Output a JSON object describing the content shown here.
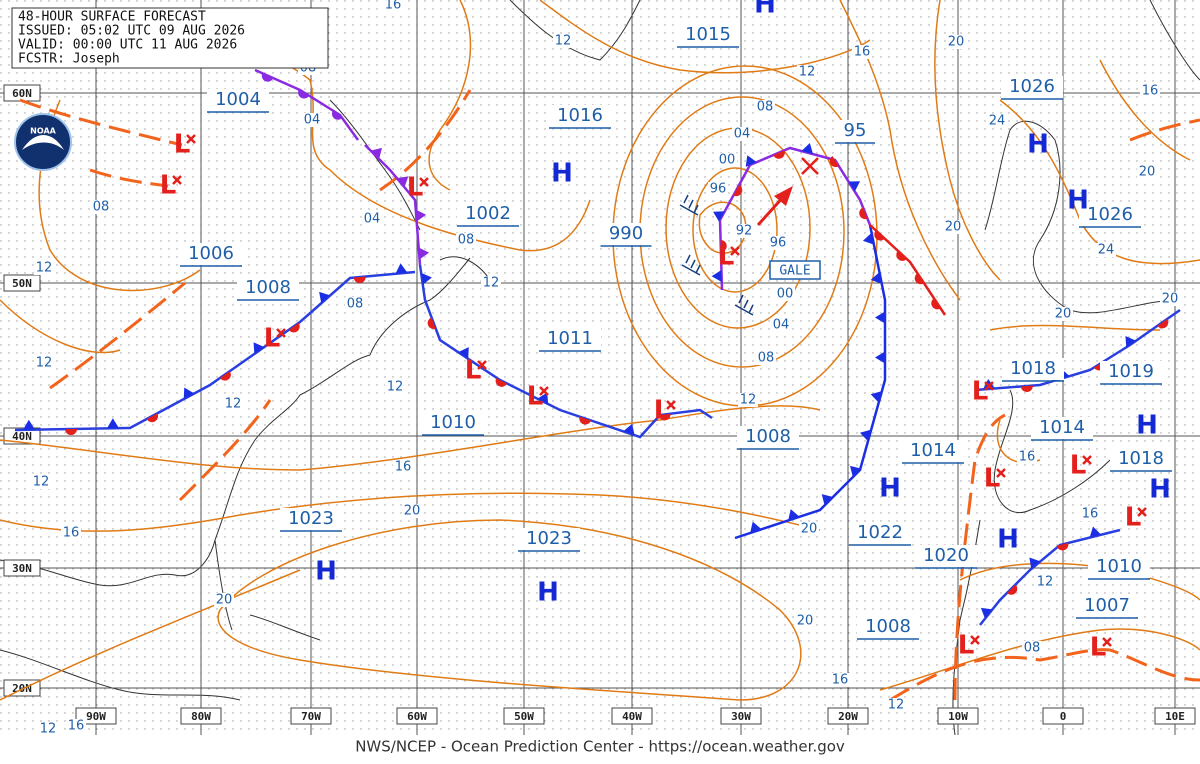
{
  "header": {
    "lines": [
      "48-HOUR SURFACE FORECAST",
      "ISSUED: 05:02 UTC 09 AUG 2026",
      "VALID: 00:00 UTC 11 AUG 2026",
      "FCSTR: Joseph"
    ]
  },
  "logo": "NOAA",
  "footer": "NWS/NCEP - Ocean Prediction Center - https://ocean.weather.gov",
  "latitude_labels": [
    "60N",
    "50N",
    "40N",
    "30N",
    "20N"
  ],
  "longitude_labels": [
    "90W",
    "80W",
    "70W",
    "60W",
    "50W",
    "40W",
    "30W",
    "20W",
    "10W",
    "0",
    "10E"
  ],
  "pressure_labels": [
    "1004",
    "1016",
    "1015",
    "1002",
    "990",
    "1006",
    "1008",
    "1011",
    "1010",
    "1023",
    "1023",
    "1008",
    "1014",
    "1022",
    "1020",
    "1008",
    "1026",
    "95",
    "1026",
    "1018",
    "1019",
    "1014",
    "1018",
    "1010",
    "1007"
  ],
  "isobar_labels": [
    "16",
    "12",
    "12",
    "16",
    "20",
    "16",
    "24",
    "20",
    "08",
    "04",
    "00",
    "96",
    "92",
    "96",
    "00",
    "04",
    "08",
    "12",
    "08",
    "04",
    "08",
    "12",
    "12",
    "08",
    "12",
    "12",
    "12",
    "16",
    "12",
    "20",
    "16",
    "20",
    "20",
    "20",
    "16",
    "12",
    "20",
    "24",
    "20",
    "20",
    "16",
    "16",
    "12",
    "08",
    "04",
    "08",
    "12",
    "16"
  ],
  "highs": [
    "H",
    "H",
    "H",
    "H",
    "H",
    "H",
    "H",
    "H",
    "H",
    "H"
  ],
  "lows": [
    "L",
    "L",
    "L",
    "L",
    "L",
    "L",
    "L",
    "L",
    "L",
    "L",
    "L",
    "L",
    "L",
    "L"
  ],
  "gale_label": "GALE"
}
